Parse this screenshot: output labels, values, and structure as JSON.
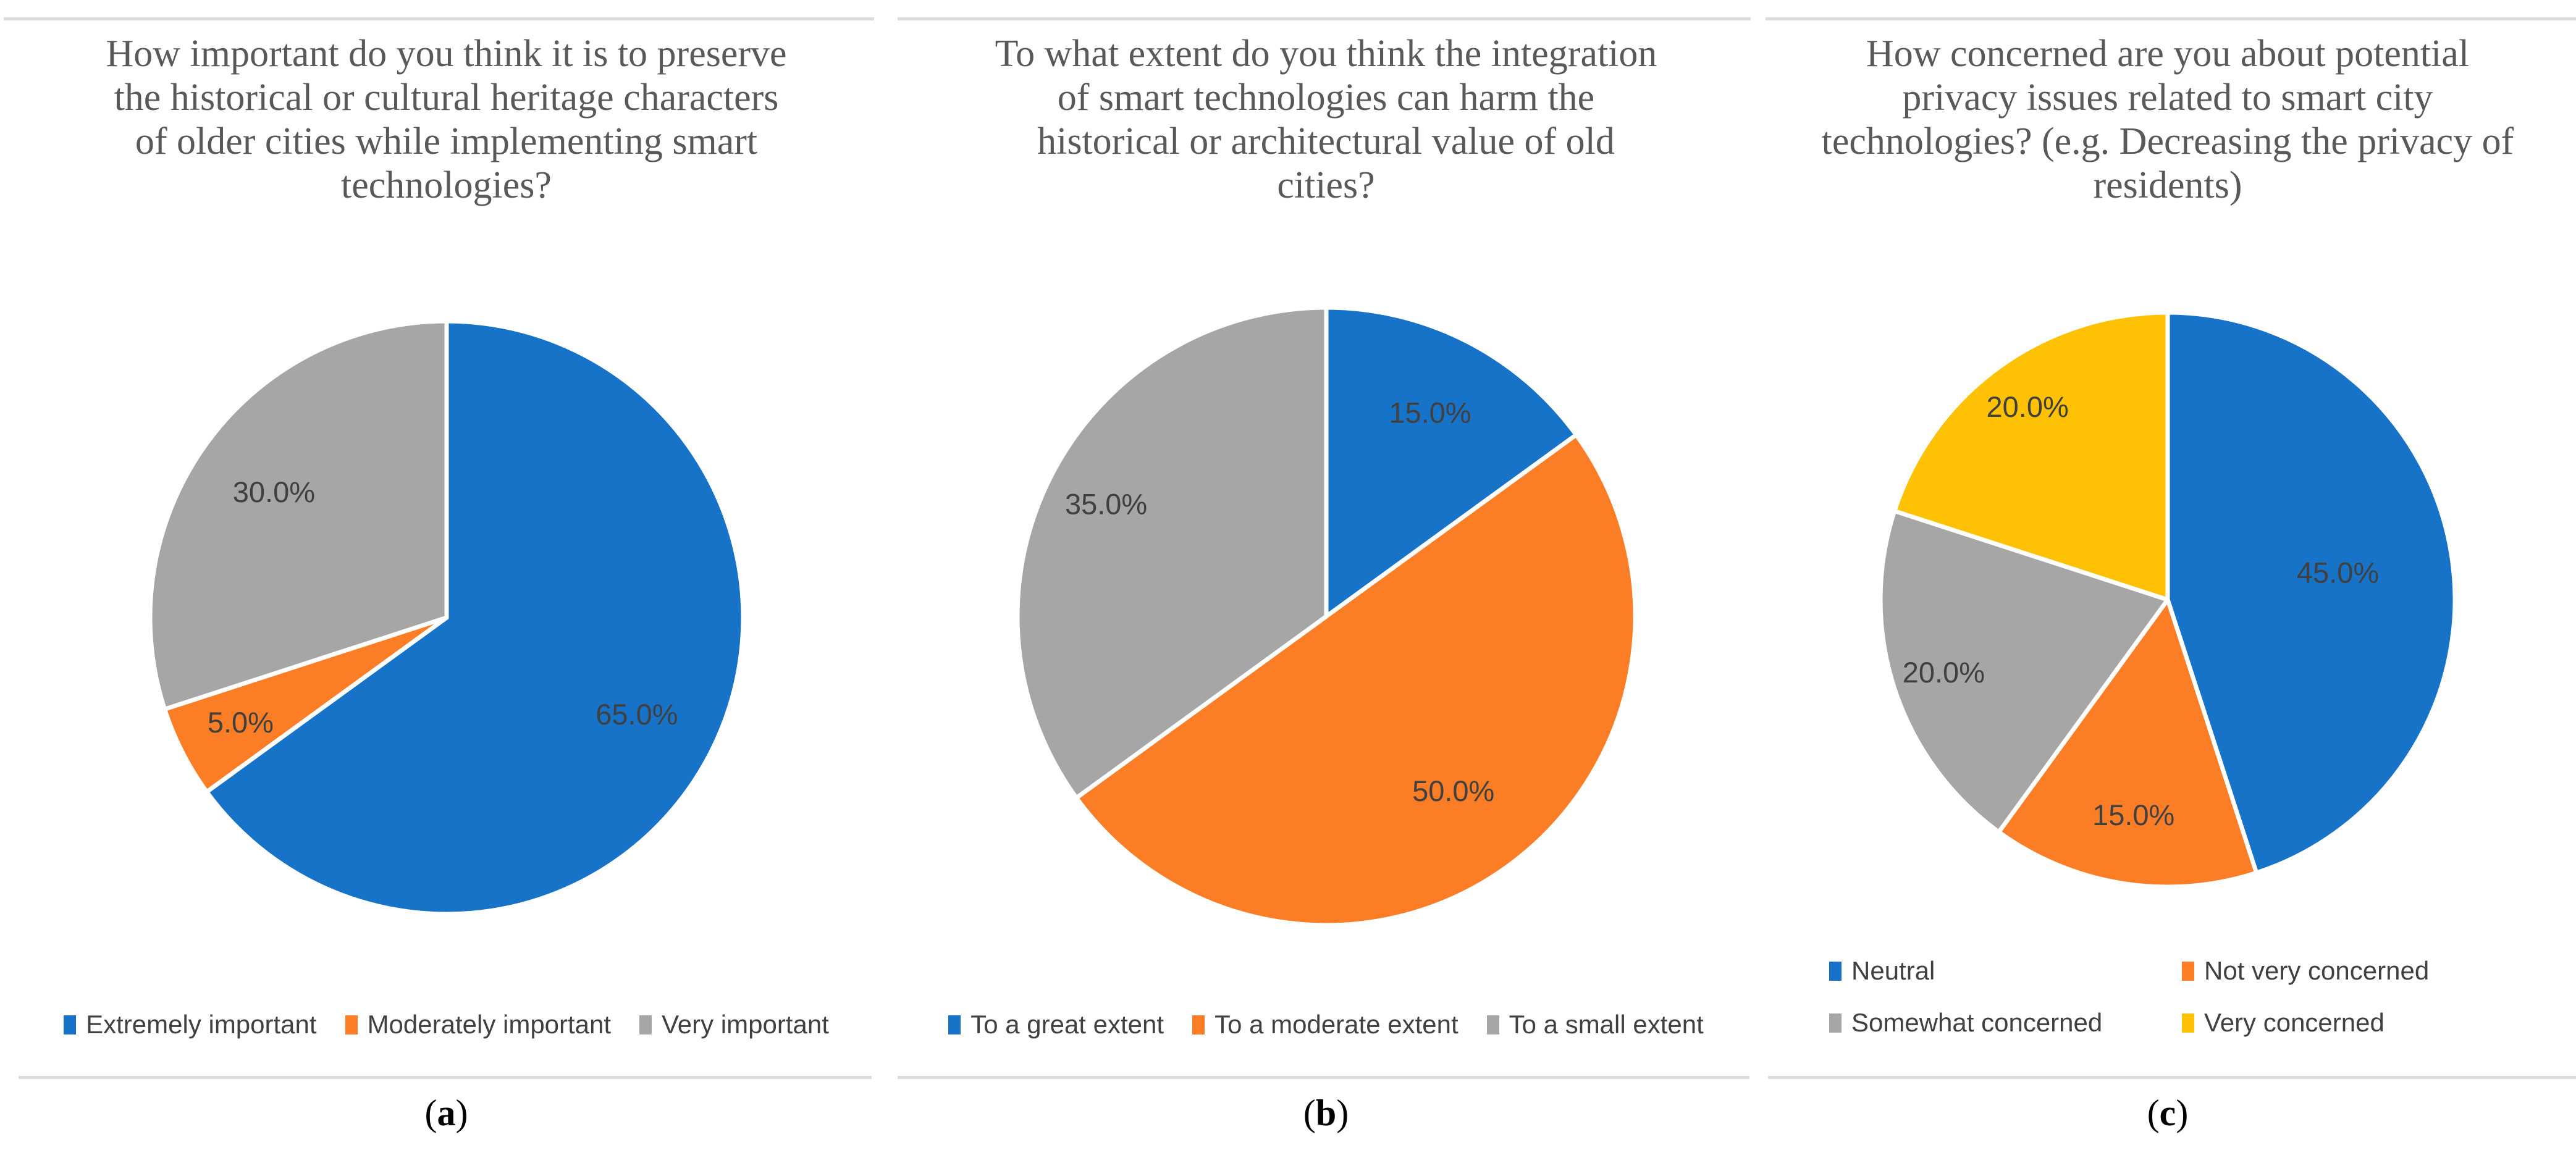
{
  "colors": {
    "blue": "#1673C8",
    "orange": "#FB7D26",
    "gray": "#A6A6A6",
    "yellow": "#FFC104",
    "slice_label_text": "#404040",
    "title_text": "#595959",
    "legend_text": "#404040",
    "rule_line": "#DCDCDC",
    "caption_text": "#000000",
    "slice_separator": "#FFFFFF"
  },
  "panels": [
    {
      "caption_open": "(",
      "caption_letter": "a",
      "caption_close": ")"
    },
    {
      "caption_open": "(",
      "caption_letter": "b",
      "caption_close": ")"
    },
    {
      "caption_open": "(",
      "caption_letter": "c",
      "caption_close": ")"
    }
  ],
  "chart_data": [
    {
      "type": "pie",
      "title": "How important do you think it is to preserve the historical or cultural heritage characters of older cities while implementing smart technologies?",
      "title_lines": [
        "How important do you think it is to preserve",
        "the historical or cultural heritage characters",
        "of older cities while implementing smart",
        "technologies?"
      ],
      "labels": [
        "Extremely important",
        "Moderately important",
        "Very important"
      ],
      "values": [
        65,
        5,
        30
      ],
      "data_labels": [
        "65.0%",
        "5.0%",
        "30.0%"
      ],
      "colors": [
        "#1673C8",
        "#FB7D26",
        "#A6A6A6"
      ],
      "start_angle_deg": 0,
      "direction": "clockwise",
      "legend_position": "bottom",
      "label_radius": [
        0.72,
        0.78,
        0.72
      ]
    },
    {
      "type": "pie",
      "title": "To what extent do you think the integration of smart technologies can harm the historical or architectural value of old cities?",
      "title_lines": [
        "To what extent do you think the integration",
        "of smart technologies can harm the",
        "historical or architectural value of old",
        "cities?"
      ],
      "labels": [
        "To a great extent",
        "To a moderate extent",
        "To a small extent"
      ],
      "values": [
        15,
        50,
        35
      ],
      "data_labels": [
        "15.0%",
        "50.0%",
        "35.0%"
      ],
      "colors": [
        "#1673C8",
        "#FB7D26",
        "#A6A6A6"
      ],
      "start_angle_deg": 0,
      "direction": "clockwise",
      "legend_position": "bottom",
      "label_radius": [
        0.74,
        0.7,
        0.8
      ]
    },
    {
      "type": "pie",
      "title": "How concerned are you about potential privacy issues related to smart city technologies? (e.g. Decreasing the privacy of residents)",
      "title_lines": [
        "How concerned are you about potential",
        "privacy issues related to smart city",
        "technologies? (e.g. Decreasing the privacy of",
        "residents)"
      ],
      "labels": [
        "Neutral",
        "Not very concerned",
        "Somewhat concerned",
        "Very concerned"
      ],
      "values": [
        45,
        15,
        20,
        20
      ],
      "data_labels": [
        "45.0%",
        "15.0%",
        "20.0%",
        "20.0%"
      ],
      "colors": [
        "#1673C8",
        "#FB7D26",
        "#A6A6A6",
        "#FFC104"
      ],
      "start_angle_deg": 0,
      "direction": "clockwise",
      "legend_position": "bottom",
      "label_radius": [
        0.6,
        0.76,
        0.82,
        0.83
      ]
    }
  ]
}
